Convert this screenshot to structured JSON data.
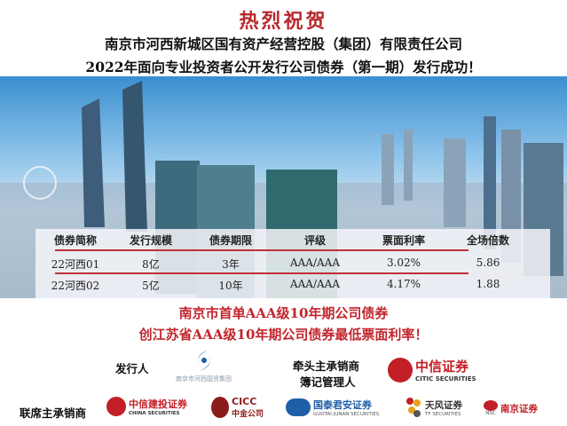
{
  "header": {
    "title": "热烈祝贺",
    "line1": "南京市河西新城区国有资产经营控股（集团）有限责任公司",
    "line2": "2022年面向专业投资者公开发行公司债券（第一期）发行成功！"
  },
  "table": {
    "headers": [
      "债券简称",
      "发行规模",
      "债券期限",
      "评级",
      "票面利率",
      "全场倍数"
    ],
    "rows": [
      [
        "22河西01",
        "8亿",
        "3年",
        "AAA/AAA",
        "3.02%",
        "5.86"
      ],
      [
        "22河西02",
        "5亿",
        "10年",
        "AAA/AAA",
        "4.17%",
        "1.88"
      ]
    ]
  },
  "highlights": [
    "南京市首单AAA级10年期公司债券",
    "创江苏省AAA级10年期公司债券最低票面利率！"
  ],
  "issuer": {
    "label": "发行人",
    "logo_text": "南京市河西国资集团"
  },
  "lead": {
    "label1": "牵头主承销商",
    "label2": "簿记管理人",
    "logo_cn": "中信证券",
    "logo_en": "CITIC SECURITIES"
  },
  "joint": {
    "label": "联席主承销商",
    "logos": [
      {
        "cn": "中信建投证券",
        "en": "CHINA SECURITIES",
        "color": "#c21f26"
      },
      {
        "cn": "中金公司",
        "en": "CICC",
        "color": "#8b1c1c"
      },
      {
        "cn": "国泰君安证券",
        "en": "GUOTAI JUNAN SECURITIES",
        "color": "#1f5fa8"
      },
      {
        "cn": "天风证券",
        "en": "TF SECURITIES",
        "color": "#333"
      },
      {
        "cn": "南京证券",
        "en": "NSC",
        "color": "#c21f26"
      }
    ]
  },
  "colors": {
    "title_red": "#b8282e",
    "accent_red": "#c1262d",
    "sky_blue": "#3b8fd0"
  }
}
